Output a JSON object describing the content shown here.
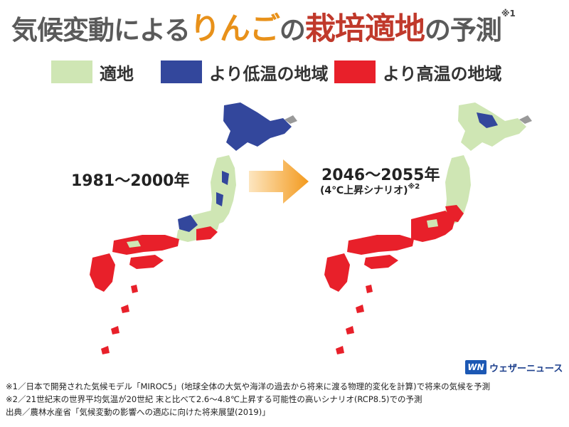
{
  "title": {
    "part1": "気候変動による",
    "part2": "りんご",
    "part3": "の",
    "part4": "栽培適地",
    "part5": "の予測",
    "note_mark": "※1"
  },
  "legend": [
    {
      "label": "適地",
      "color": "#cfe6b4"
    },
    {
      "label": "より低温の地域",
      "color": "#33479c"
    },
    {
      "label": "より高温の地域",
      "color": "#e8202a"
    }
  ],
  "maps": {
    "before": {
      "period": "1981〜2000年"
    },
    "after": {
      "period": "2046〜2055年",
      "scenario": "(4℃上昇シナリオ)",
      "scenario_note": "※2"
    }
  },
  "arrow": {
    "color": "#f39a1e"
  },
  "logo": {
    "mark": "WN",
    "text": "ウェザーニュース"
  },
  "notes": [
    "※1／日本で開発された気候モデル「MIROC5」(地球全体の大気や海洋の過去から将来に渡る物理的変化を計算)で将来の気候を予測",
    "※2／21世紀末の世界平均気温が20世紀 末と比べて2.6〜4.8℃上昇する可能性の高いシナリオ(RCP8.5)での予測",
    "出典／農林水産省「気候変動の影響への適応に向けた将来展望(2019)」"
  ]
}
